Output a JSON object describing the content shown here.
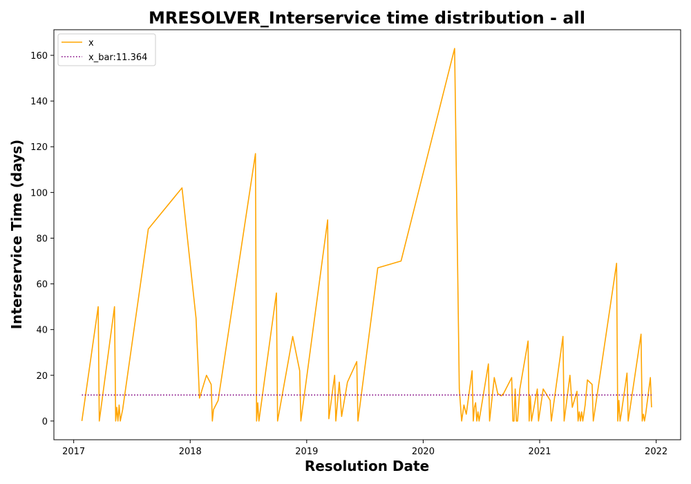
{
  "chart_data": {
    "type": "line",
    "title": "MRESOLVER_Interservice time distribution - all",
    "xlabel": "Resolution Date",
    "ylabel": "Interservice Time (days)",
    "xlim": [
      2016.83,
      2022.21
    ],
    "ylim": [
      -8.2,
      171.2
    ],
    "x_ticks": [
      2017,
      2018,
      2019,
      2020,
      2021,
      2022
    ],
    "y_ticks": [
      0,
      20,
      40,
      60,
      80,
      100,
      120,
      140,
      160
    ],
    "grid": false,
    "legend_position": "top-left",
    "colors": {
      "x": "#FFA500",
      "x_bar": "#800080"
    },
    "series": [
      {
        "name": "x",
        "style": "solid",
        "x": [
          2017.07,
          2017.21,
          2017.22,
          2017.35,
          2017.36,
          2017.37,
          2017.38,
          2017.39,
          2017.4,
          2017.42,
          2017.64,
          2017.93,
          2018.05,
          2018.08,
          2018.14,
          2018.18,
          2018.19,
          2018.2,
          2018.24,
          2018.56,
          2018.57,
          2018.58,
          2018.59,
          2018.74,
          2018.75,
          2018.88,
          2018.94,
          2018.95,
          2019.18,
          2019.19,
          2019.24,
          2019.25,
          2019.28,
          2019.3,
          2019.35,
          2019.43,
          2019.44,
          2019.61,
          2019.81,
          2020.27,
          2020.31,
          2020.33,
          2020.35,
          2020.37,
          2020.42,
          2020.43,
          2020.44,
          2020.45,
          2020.46,
          2020.47,
          2020.48,
          2020.56,
          2020.57,
          2020.61,
          2020.64,
          2020.67,
          2020.69,
          2020.76,
          2020.77,
          2020.78,
          2020.79,
          2020.8,
          2020.81,
          2020.83,
          2020.9,
          2020.91,
          2020.92,
          2020.93,
          2020.98,
          2020.99,
          2021.03,
          2021.09,
          2021.1,
          2021.2,
          2021.21,
          2021.26,
          2021.28,
          2021.32,
          2021.33,
          2021.34,
          2021.35,
          2021.36,
          2021.37,
          2021.39,
          2021.41,
          2021.45,
          2021.46,
          2021.66,
          2021.67,
          2021.68,
          2021.69,
          2021.7,
          2021.75,
          2021.76,
          2021.87,
          2021.88,
          2021.89,
          2021.9,
          2021.91,
          2021.95,
          2021.96
        ],
        "y": [
          0,
          50,
          0,
          50,
          0,
          6,
          0,
          7,
          0,
          5,
          84,
          102,
          45,
          10,
          20,
          16,
          0,
          5,
          9,
          117,
          0,
          8,
          0,
          56,
          0,
          37,
          22,
          0,
          88,
          1,
          20,
          0,
          17,
          2,
          17,
          26,
          0,
          67,
          70,
          163,
          14,
          0,
          7,
          3,
          22,
          0,
          6,
          8,
          0,
          4,
          0,
          25,
          0,
          19,
          12,
          11,
          12,
          19,
          0,
          0,
          14,
          0,
          0,
          14,
          35,
          0,
          11,
          0,
          14,
          0,
          14,
          9,
          0,
          37,
          0,
          20,
          6,
          13,
          0,
          4,
          0,
          4,
          0,
          7,
          18,
          16,
          0,
          69,
          0,
          9,
          0,
          3,
          21,
          0,
          38,
          0,
          3,
          0,
          3,
          19,
          6
        ]
      },
      {
        "name": "x_bar:11.364",
        "style": "dotted",
        "x": [
          2017.07,
          2021.96
        ],
        "y": [
          11.364,
          11.364
        ]
      }
    ]
  }
}
